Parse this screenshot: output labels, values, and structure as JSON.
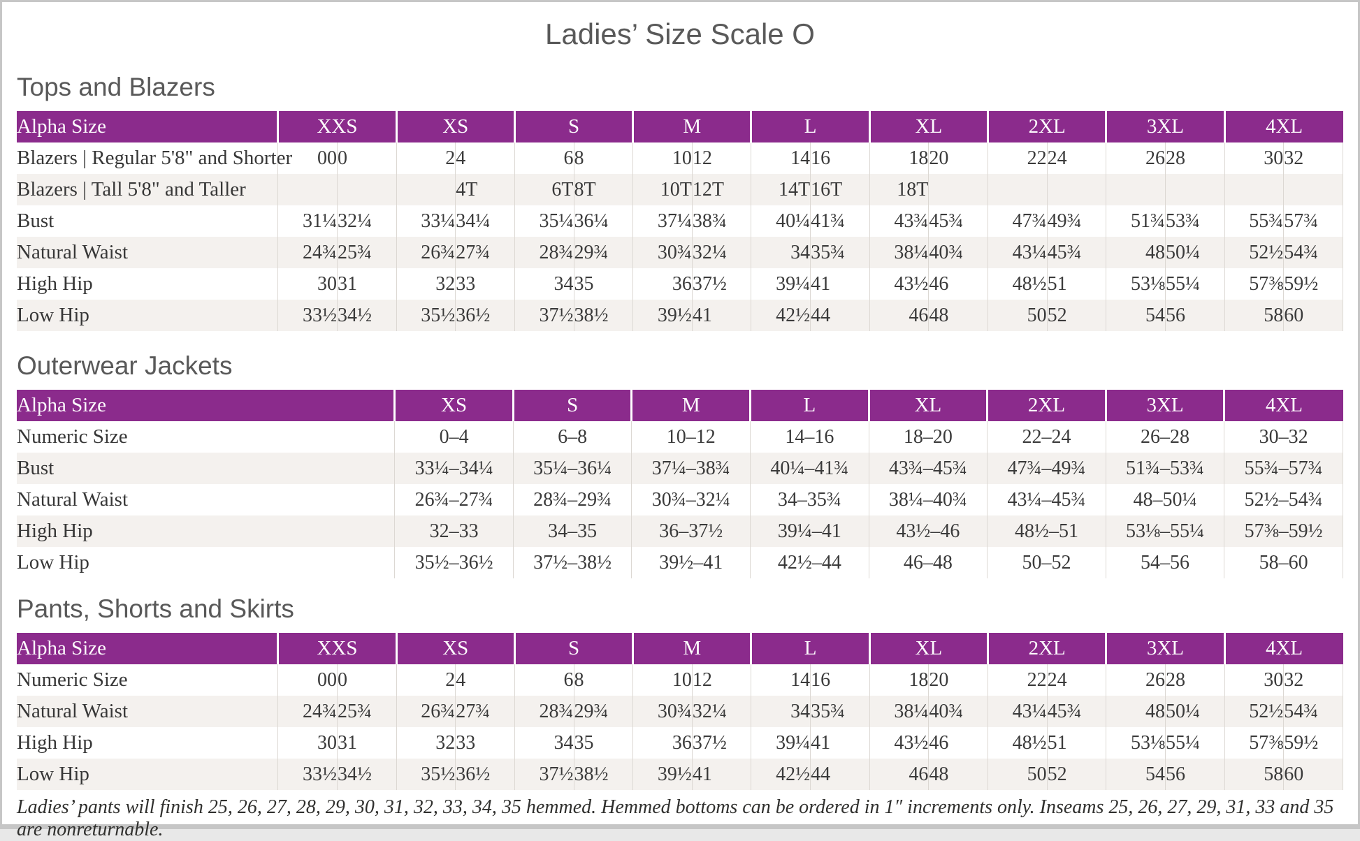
{
  "title": "Ladies’ Size Scale O",
  "colors": {
    "header_purple": "#8b2b8c",
    "row_stripe": "#f4f1ee",
    "heading_gray": "#595959"
  },
  "sections": [
    {
      "heading": "Tops and Blazers",
      "type": "grouped",
      "corner_label": "Alpha Size",
      "sizes": [
        "XXS",
        "XS",
        "S",
        "M",
        "L",
        "XL",
        "2XL",
        "3XL",
        "4XL"
      ],
      "rows": [
        {
          "label": "Blazers | Regular 5'8\" and Shorter",
          "values": [
            "00",
            "0",
            "2",
            "4",
            "6",
            "8",
            "10",
            "12",
            "14",
            "16",
            "18",
            "20",
            "22",
            "24",
            "26",
            "28",
            "30",
            "32"
          ]
        },
        {
          "label": "Blazers | Tall 5'8\" and Taller",
          "values": [
            "",
            "",
            "",
            "4T",
            "6T",
            "8T",
            "10T",
            "12T",
            "14T",
            "16T",
            "18T",
            "",
            "",
            "",
            "",
            "",
            "",
            ""
          ]
        },
        {
          "label": "Bust",
          "values": [
            "31¼",
            "32¼",
            "33¼",
            "34¼",
            "35¼",
            "36¼",
            "37¼",
            "38¾",
            "40¼",
            "41¾",
            "43¾",
            "45¾",
            "47¾",
            "49¾",
            "51¾",
            "53¾",
            "55¾",
            "57¾"
          ]
        },
        {
          "label": "Natural Waist",
          "values": [
            "24¾",
            "25¾",
            "26¾",
            "27¾",
            "28¾",
            "29¾",
            "30¾",
            "32¼",
            "34",
            "35¾",
            "38¼",
            "40¾",
            "43¼",
            "45¾",
            "48",
            "50¼",
            "52½",
            "54¾"
          ]
        },
        {
          "label": "High Hip",
          "values": [
            "30",
            "31",
            "32",
            "33",
            "34",
            "35",
            "36",
            "37½",
            "39¼",
            "41",
            "43½",
            "46",
            "48½",
            "51",
            "53⅛",
            "55¼",
            "57⅜",
            "59½"
          ]
        },
        {
          "label": "Low Hip",
          "values": [
            "33½",
            "34½",
            "35½",
            "36½",
            "37½",
            "38½",
            "39½",
            "41",
            "42½",
            "44",
            "46",
            "48",
            "50",
            "52",
            "54",
            "56",
            "58",
            "60"
          ]
        }
      ]
    },
    {
      "heading": "Outerwear Jackets",
      "type": "single",
      "corner_label": "Alpha Size",
      "sizes": [
        "XS",
        "S",
        "M",
        "L",
        "XL",
        "2XL",
        "3XL",
        "4XL"
      ],
      "rows": [
        {
          "label": "Numeric Size",
          "values": [
            "0–4",
            "6–8",
            "10–12",
            "14–16",
            "18–20",
            "22–24",
            "26–28",
            "30–32"
          ]
        },
        {
          "label": "Bust",
          "values": [
            "33¼–34¼",
            "35¼–36¼",
            "37¼–38¾",
            "40¼–41¾",
            "43¾–45¾",
            "47¾–49¾",
            "51¾–53¾",
            "55¾–57¾"
          ]
        },
        {
          "label": "Natural Waist",
          "values": [
            "26¾–27¾",
            "28¾–29¾",
            "30¾–32¼",
            "34–35¾",
            "38¼–40¾",
            "43¼–45¾",
            "48–50¼",
            "52½–54¾"
          ]
        },
        {
          "label": "High Hip",
          "values": [
            "32–33",
            "34–35",
            "36–37½",
            "39¼–41",
            "43½–46",
            "48½–51",
            "53⅛–55¼",
            "57⅜–59½"
          ]
        },
        {
          "label": "Low Hip",
          "values": [
            "35½–36½",
            "37½–38½",
            "39½–41",
            "42½–44",
            "46–48",
            "50–52",
            "54–56",
            "58–60"
          ]
        }
      ]
    },
    {
      "heading": "Pants, Shorts and Skirts",
      "type": "grouped",
      "corner_label": "Alpha Size",
      "sizes": [
        "XXS",
        "XS",
        "S",
        "M",
        "L",
        "XL",
        "2XL",
        "3XL",
        "4XL"
      ],
      "rows": [
        {
          "label": "Numeric Size",
          "values": [
            "00",
            "0",
            "2",
            "4",
            "6",
            "8",
            "10",
            "12",
            "14",
            "16",
            "18",
            "20",
            "22",
            "24",
            "26",
            "28",
            "30",
            "32"
          ]
        },
        {
          "label": "Natural Waist",
          "values": [
            "24¾",
            "25¾",
            "26¾",
            "27¾",
            "28¾",
            "29¾",
            "30¾",
            "32¼",
            "34",
            "35¾",
            "38¼",
            "40¾",
            "43¼",
            "45¾",
            "48",
            "50¼",
            "52½",
            "54¾"
          ]
        },
        {
          "label": "High Hip",
          "values": [
            "30",
            "31",
            "32",
            "33",
            "34",
            "35",
            "36",
            "37½",
            "39¼",
            "41",
            "43½",
            "46",
            "48½",
            "51",
            "53⅛",
            "55¼",
            "57⅜",
            "59½"
          ]
        },
        {
          "label": "Low Hip",
          "values": [
            "33½",
            "34½",
            "35½",
            "36½",
            "37½",
            "38½",
            "39½",
            "41",
            "42½",
            "44",
            "46",
            "48",
            "50",
            "52",
            "54",
            "56",
            "58",
            "60"
          ]
        }
      ]
    }
  ],
  "footnote": "Ladies’ pants will finish 25, 26, 27, 28, 29, 30, 31, 32, 33, 34, 35 hemmed. Hemmed bottoms can be ordered in 1″ increments only. Inseams 25, 26, 27, 29, 31, 33 and 35 are nonreturnable."
}
